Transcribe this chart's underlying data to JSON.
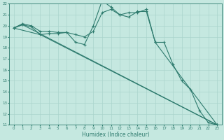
{
  "bg_color": "#c5e8e0",
  "grid_color": "#aad4cc",
  "line_color": "#2e7b6e",
  "xlabel": "Humidex (Indice chaleur)",
  "ylim": [
    11,
    22
  ],
  "xlim": [
    -0.5,
    23.5
  ],
  "yticks": [
    11,
    12,
    13,
    14,
    15,
    16,
    17,
    18,
    19,
    20,
    21,
    22
  ],
  "xticks": [
    0,
    1,
    2,
    3,
    4,
    5,
    6,
    7,
    8,
    9,
    10,
    11,
    12,
    13,
    14,
    15,
    16,
    17,
    18,
    19,
    20,
    21,
    22,
    23
  ],
  "line1_x": [
    0,
    1,
    2,
    3,
    4,
    5,
    6,
    7,
    8,
    9,
    10,
    11,
    12,
    13,
    14,
    15,
    16,
    17,
    18,
    19,
    20,
    21,
    22,
    23
  ],
  "line1_y": [
    19.8,
    20.2,
    20.0,
    19.5,
    19.5,
    19.4,
    19.4,
    18.5,
    18.3,
    20.0,
    22.3,
    21.7,
    21.0,
    20.8,
    21.3,
    21.3,
    18.5,
    18.5,
    16.5,
    15.0,
    14.2,
    12.3,
    11.2,
    11.0
  ],
  "line2_x": [
    0,
    1,
    2,
    3,
    4,
    5,
    6,
    7,
    8,
    9,
    10,
    11,
    12,
    13,
    14,
    15,
    16,
    23
  ],
  "line2_y": [
    19.8,
    20.1,
    19.9,
    19.2,
    19.3,
    19.3,
    19.4,
    19.2,
    19.0,
    19.5,
    21.2,
    21.5,
    21.0,
    21.2,
    21.2,
    21.5,
    18.5,
    11.0
  ],
  "line3_x": [
    0,
    1,
    23
  ],
  "line3_y": [
    19.8,
    20.1,
    11.0
  ],
  "line4_x": [
    0,
    3,
    23
  ],
  "line4_y": [
    19.8,
    19.2,
    11.0
  ]
}
